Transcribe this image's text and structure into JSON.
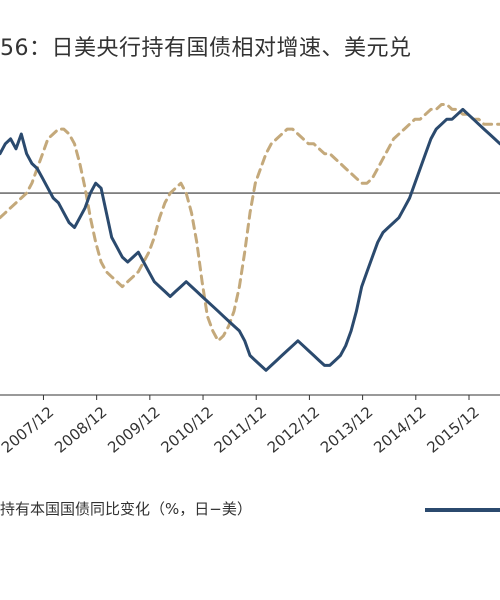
{
  "title": "56：日美央行持有国债相对增速、美元兑",
  "legend": {
    "series_1_label": "持有本国国债同比变化（%，日−美）"
  },
  "colors": {
    "series_1": "#2b4a6e",
    "series_2": "#c4a97b",
    "axis": "#333333"
  },
  "chart_data": {
    "type": "line",
    "x_tick_labels": [
      "2007/12",
      "2008/12",
      "2009/12",
      "2010/12",
      "2011/12",
      "2012/12",
      "2013/12",
      "2014/12",
      "2015/12"
    ],
    "x_ticks": [
      2007.917,
      2008.917,
      2009.917,
      2010.917,
      2011.917,
      2012.917,
      2013.917,
      2014.917,
      2015.917
    ],
    "xlim": [
      2007.1,
      2016.5
    ],
    "ylim": [
      -40,
      25
    ],
    "baseline": 0,
    "grid": false,
    "legend_position": "bottom",
    "series": [
      {
        "name": "持有本国国债同比变化（%，日−美）",
        "style": "solid",
        "x": [
          2007.1,
          2007.2,
          2007.3,
          2007.4,
          2007.5,
          2007.6,
          2007.7,
          2007.8,
          2007.9,
          2008.0,
          2008.1,
          2008.2,
          2008.3,
          2008.4,
          2008.5,
          2008.6,
          2008.7,
          2008.8,
          2008.9,
          2009.0,
          2009.1,
          2009.2,
          2009.3,
          2009.4,
          2009.5,
          2009.6,
          2009.7,
          2009.8,
          2009.9,
          2010.0,
          2010.1,
          2010.2,
          2010.3,
          2010.4,
          2010.5,
          2010.6,
          2010.7,
          2010.8,
          2010.9,
          2011.0,
          2011.1,
          2011.2,
          2011.3,
          2011.4,
          2011.5,
          2011.6,
          2011.7,
          2011.8,
          2011.9,
          2012.0,
          2012.1,
          2012.2,
          2012.3,
          2012.4,
          2012.5,
          2012.6,
          2012.7,
          2012.8,
          2012.9,
          2013.0,
          2013.1,
          2013.2,
          2013.3,
          2013.4,
          2013.5,
          2013.6,
          2013.7,
          2013.8,
          2013.9,
          2014.0,
          2014.1,
          2014.2,
          2014.3,
          2014.4,
          2014.5,
          2014.6,
          2014.7,
          2014.8,
          2014.9,
          2015.0,
          2015.1,
          2015.2,
          2015.3,
          2015.4,
          2015.5,
          2015.6,
          2015.7,
          2015.8,
          2015.9,
          2016.0,
          2016.1,
          2016.2,
          2016.3,
          2016.4,
          2016.5
        ],
        "values": [
          8,
          10,
          11,
          9,
          12,
          8,
          6,
          5,
          3,
          1,
          -1,
          -2,
          -4,
          -6,
          -7,
          -5,
          -3,
          0,
          2,
          1,
          -4,
          -9,
          -11,
          -13,
          -14,
          -13,
          -12,
          -14,
          -16,
          -18,
          -19,
          -20,
          -21,
          -20,
          -19,
          -18,
          -19,
          -20,
          -21,
          -22,
          -23,
          -24,
          -25,
          -26,
          -27,
          -28,
          -30,
          -33,
          -34,
          -35,
          -36,
          -35,
          -34,
          -33,
          -32,
          -31,
          -30,
          -31,
          -32,
          -33,
          -34,
          -35,
          -35,
          -34,
          -33,
          -31,
          -28,
          -24,
          -19,
          -16,
          -13,
          -10,
          -8,
          -7,
          -6,
          -5,
          -3,
          -1,
          2,
          5,
          8,
          11,
          13,
          14,
          15,
          15,
          16,
          17,
          16,
          15,
          14,
          13,
          12,
          11,
          10
        ],
        "style_note": ""
      },
      {
        "name": "",
        "style": "dashed",
        "x": [
          2007.1,
          2007.2,
          2007.3,
          2007.4,
          2007.5,
          2007.6,
          2007.7,
          2007.8,
          2007.9,
          2008.0,
          2008.1,
          2008.2,
          2008.3,
          2008.4,
          2008.5,
          2008.6,
          2008.7,
          2008.8,
          2008.9,
          2009.0,
          2009.1,
          2009.2,
          2009.3,
          2009.4,
          2009.5,
          2009.6,
          2009.7,
          2009.8,
          2009.9,
          2010.0,
          2010.1,
          2010.2,
          2010.3,
          2010.4,
          2010.5,
          2010.6,
          2010.7,
          2010.8,
          2010.9,
          2011.0,
          2011.1,
          2011.2,
          2011.3,
          2011.4,
          2011.5,
          2011.6,
          2011.7,
          2011.8,
          2011.9,
          2012.0,
          2012.1,
          2012.2,
          2012.3,
          2012.4,
          2012.5,
          2012.6,
          2012.7,
          2012.8,
          2012.9,
          2013.0,
          2013.1,
          2013.2,
          2013.3,
          2013.4,
          2013.5,
          2013.6,
          2013.7,
          2013.8,
          2013.9,
          2014.0,
          2014.1,
          2014.2,
          2014.3,
          2014.4,
          2014.5,
          2014.6,
          2014.7,
          2014.8,
          2014.9,
          2015.0,
          2015.1,
          2015.2,
          2015.3,
          2015.4,
          2015.5,
          2015.6,
          2015.7,
          2015.8,
          2015.9,
          2016.0,
          2016.1,
          2016.2,
          2016.3,
          2016.4,
          2016.5
        ],
        "values": [
          -5,
          -4,
          -3,
          -2,
          -1,
          0,
          2,
          5,
          8,
          11,
          12,
          13,
          13,
          12,
          10,
          6,
          1,
          -5,
          -10,
          -14,
          -16,
          -17,
          -18,
          -19,
          -18,
          -17,
          -16,
          -14,
          -12,
          -9,
          -5,
          -2,
          0,
          1,
          2,
          0,
          -4,
          -10,
          -18,
          -25,
          -28,
          -30,
          -29,
          -27,
          -24,
          -19,
          -12,
          -4,
          2,
          5,
          8,
          10,
          11,
          12,
          13,
          13,
          12,
          11,
          10,
          10,
          9,
          8,
          8,
          7,
          6,
          5,
          4,
          3,
          2,
          2,
          3,
          5,
          7,
          9,
          11,
          12,
          13,
          14,
          15,
          15,
          16,
          17,
          17,
          18,
          18,
          17,
          17,
          16,
          16,
          15,
          15,
          14,
          14,
          14,
          14
        ]
      }
    ]
  }
}
